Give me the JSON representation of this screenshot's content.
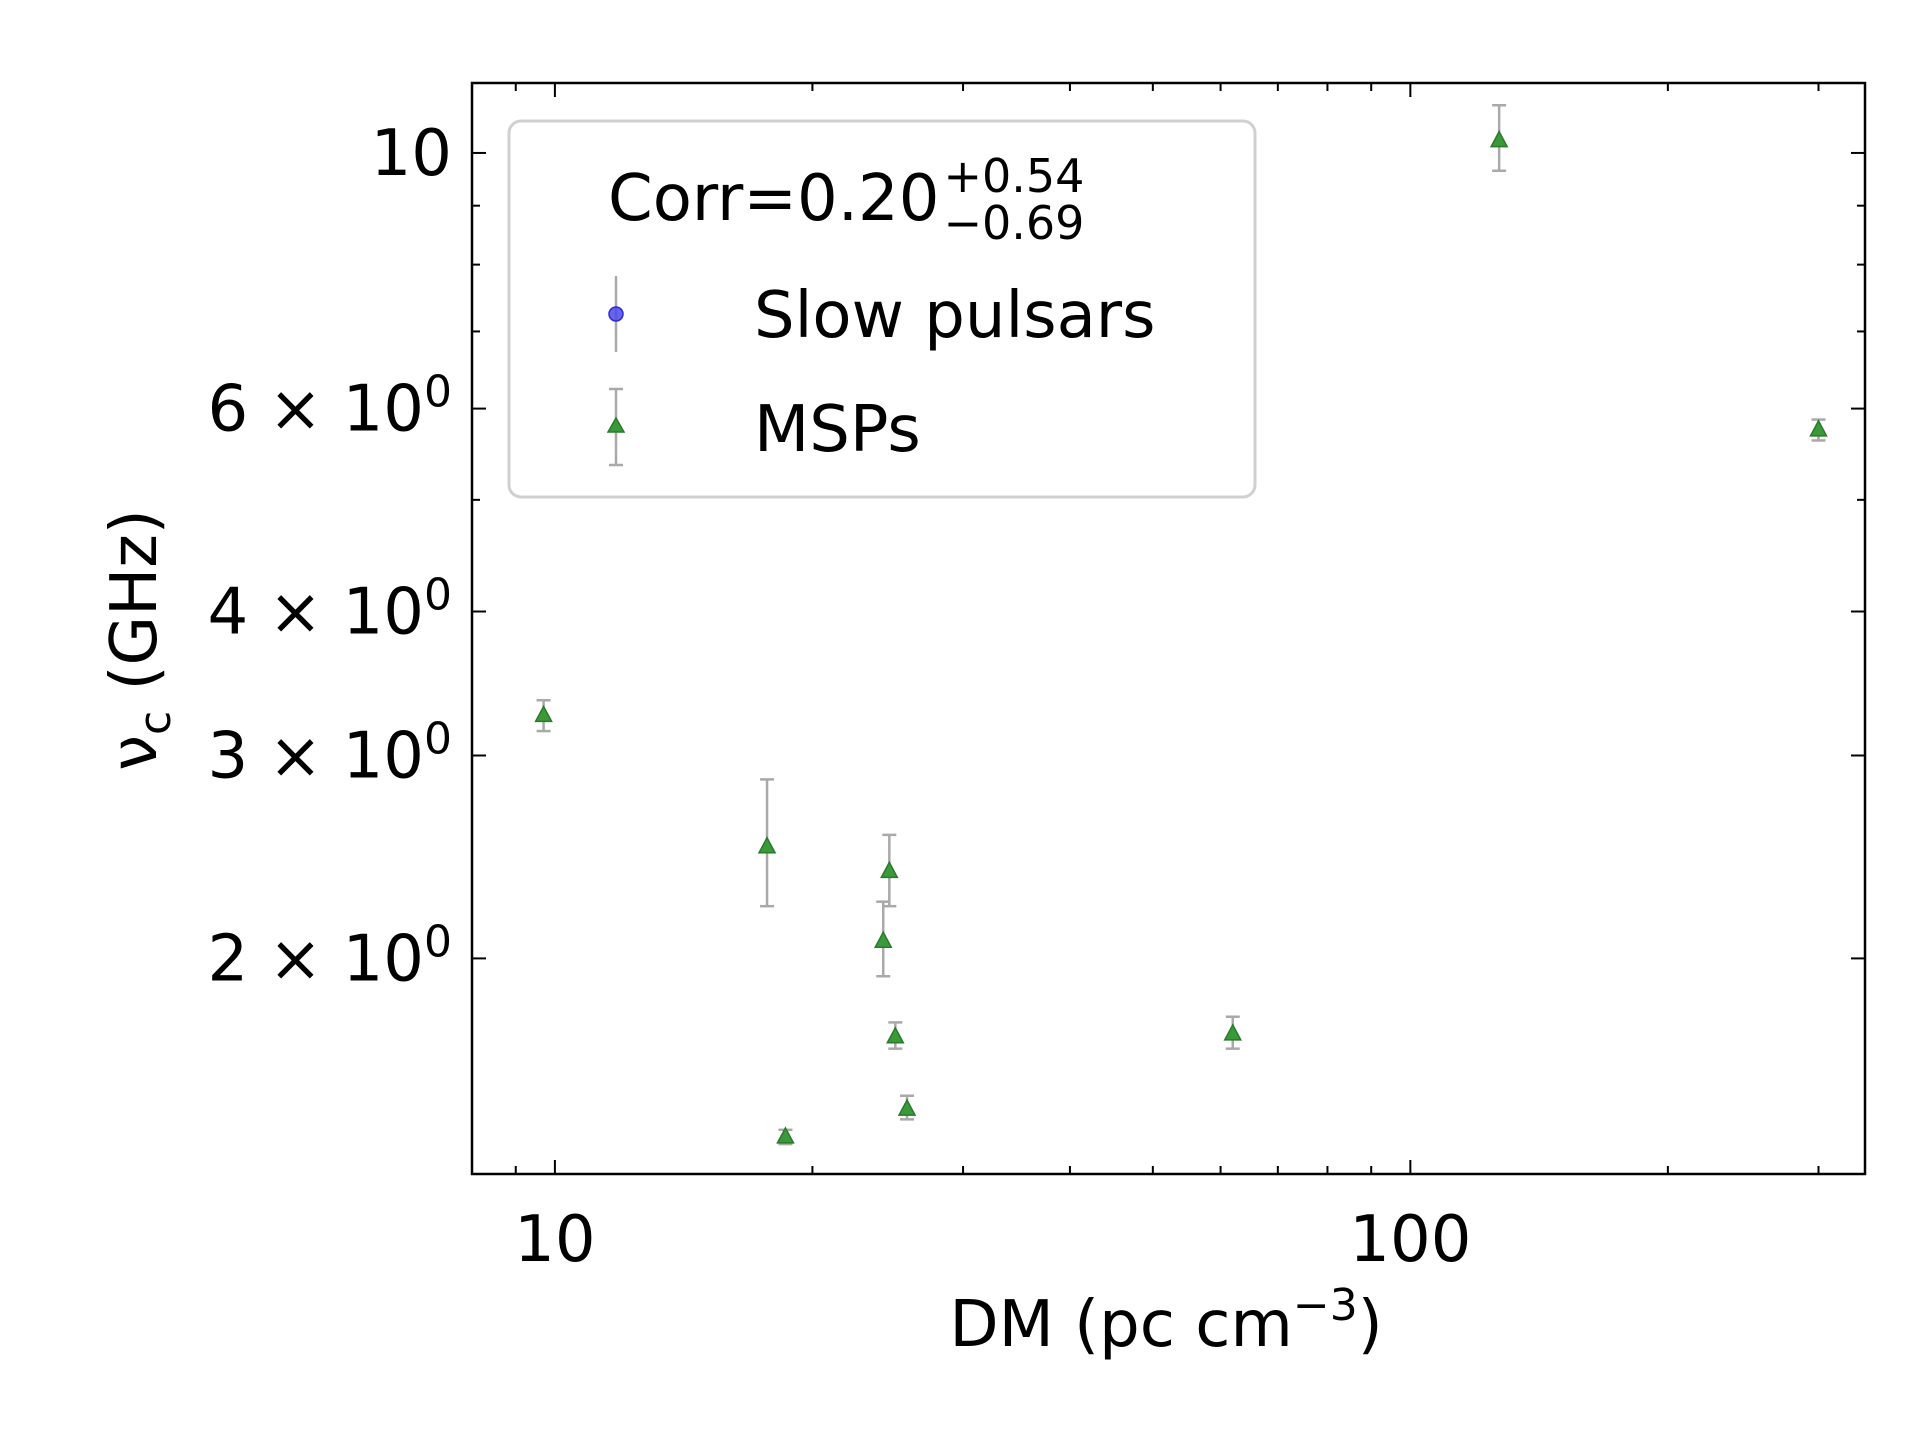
{
  "chart_data": {
    "type": "scatter",
    "x_scale": "log",
    "y_scale": "log",
    "xlabel": "DM (pc cm",
    "xlabel_sup": "−3",
    "xlabel_end": ")",
    "ylabel": "ν",
    "ylabel_sub": "c",
    "ylabel_end": " (GHz)",
    "xlim": [
      8,
      340
    ],
    "ylim": [
      1.3,
      11.5
    ],
    "x_ticks": [
      {
        "value": 10,
        "label": "10"
      },
      {
        "value": 100,
        "label": "100"
      }
    ],
    "y_ticks": [
      {
        "value": 2,
        "base": "2 × 10",
        "exp": "0"
      },
      {
        "value": 3,
        "base": "3 × 10",
        "exp": "0"
      },
      {
        "value": 4,
        "base": "4 × 10",
        "exp": "0"
      },
      {
        "value": 6,
        "base": "6 × 10",
        "exp": "0"
      },
      {
        "value": 10,
        "base": "10",
        "exp": ""
      }
    ],
    "annotation": {
      "prefix": "Corr=0.20",
      "upper": "+0.54",
      "lower": "−0.69"
    },
    "legend_position": "top-left",
    "grid": false,
    "series": [
      {
        "name": "Slow pulsars",
        "marker": "circle",
        "color": "#4a4ae8",
        "points": []
      },
      {
        "name": "MSPs",
        "marker": "triangle",
        "color": "#3a9a3a",
        "errorbar_color": "#a9a9a9",
        "points": [
          {
            "x": 9.7,
            "y": 3.25,
            "y_err_low": 0.1,
            "y_err_high": 0.1
          },
          {
            "x": 17.7,
            "y": 2.5,
            "y_err_low": 0.28,
            "y_err_high": 0.36
          },
          {
            "x": 18.6,
            "y": 1.4,
            "y_err_low": 0.02,
            "y_err_high": 0.02
          },
          {
            "x": 24.2,
            "y": 2.07,
            "y_err_low": 0.14,
            "y_err_high": 0.17
          },
          {
            "x": 24.6,
            "y": 2.38,
            "y_err_low": 0.16,
            "y_err_high": 0.18
          },
          {
            "x": 25.0,
            "y": 1.71,
            "y_err_low": 0.04,
            "y_err_high": 0.05
          },
          {
            "x": 25.8,
            "y": 1.48,
            "y_err_low": 0.03,
            "y_err_high": 0.04
          },
          {
            "x": 62.0,
            "y": 1.72,
            "y_err_low": 0.05,
            "y_err_high": 0.06
          },
          {
            "x": 127.0,
            "y": 10.25,
            "y_err_low": 0.6,
            "y_err_high": 0.75
          },
          {
            "x": 300.0,
            "y": 5.75,
            "y_err_low": 0.12,
            "y_err_high": 0.12
          }
        ]
      }
    ]
  }
}
